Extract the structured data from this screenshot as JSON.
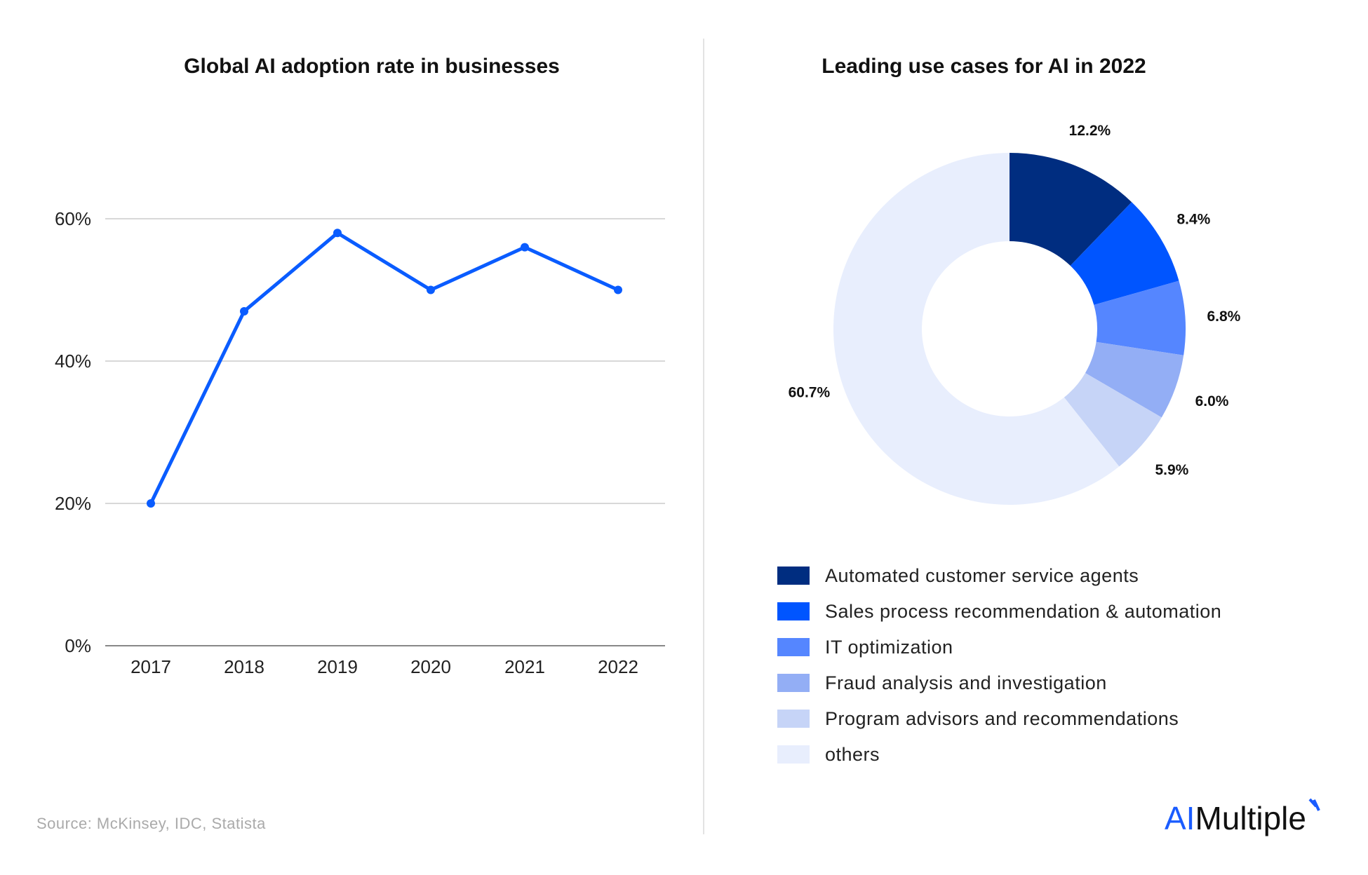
{
  "chart_data": [
    {
      "type": "line",
      "title": "Global AI adoption rate in businesses",
      "categories": [
        "2017",
        "2018",
        "2019",
        "2020",
        "2021",
        "2022"
      ],
      "values": [
        20,
        47,
        58,
        50,
        56,
        50
      ],
      "yticks": [
        "0%",
        "20%",
        "40%",
        "60%"
      ],
      "ylim": [
        0,
        70
      ],
      "grid": true,
      "color": "#0a5cff"
    },
    {
      "type": "pie",
      "donut": true,
      "title": "Leading use cases for AI in 2022",
      "slices": [
        {
          "name": "Automated customer service agents",
          "value": 12.2,
          "label": "12.2%",
          "color": "#002d80"
        },
        {
          "name": "Sales process recommendation & automation",
          "value": 8.4,
          "label": "8.4%",
          "color": "#0055ff"
        },
        {
          "name": "IT optimization",
          "value": 6.8,
          "label": "6.8%",
          "color": "#5586ff"
        },
        {
          "name": "Fraud analysis and investigation",
          "value": 6.0,
          "label": "6.0%",
          "color": "#93aef5"
        },
        {
          "name": "Program advisors and recommendations",
          "value": 5.9,
          "label": "5.9%",
          "color": "#c6d4f7"
        },
        {
          "name": "others",
          "value": 60.7,
          "label": "60.7%",
          "color": "#e8eefd"
        }
      ],
      "legend_placement": "bottom"
    }
  ],
  "source": "Source: McKinsey, IDC, Statista",
  "logo": {
    "ai": "AI",
    "rest": "Multiple"
  }
}
